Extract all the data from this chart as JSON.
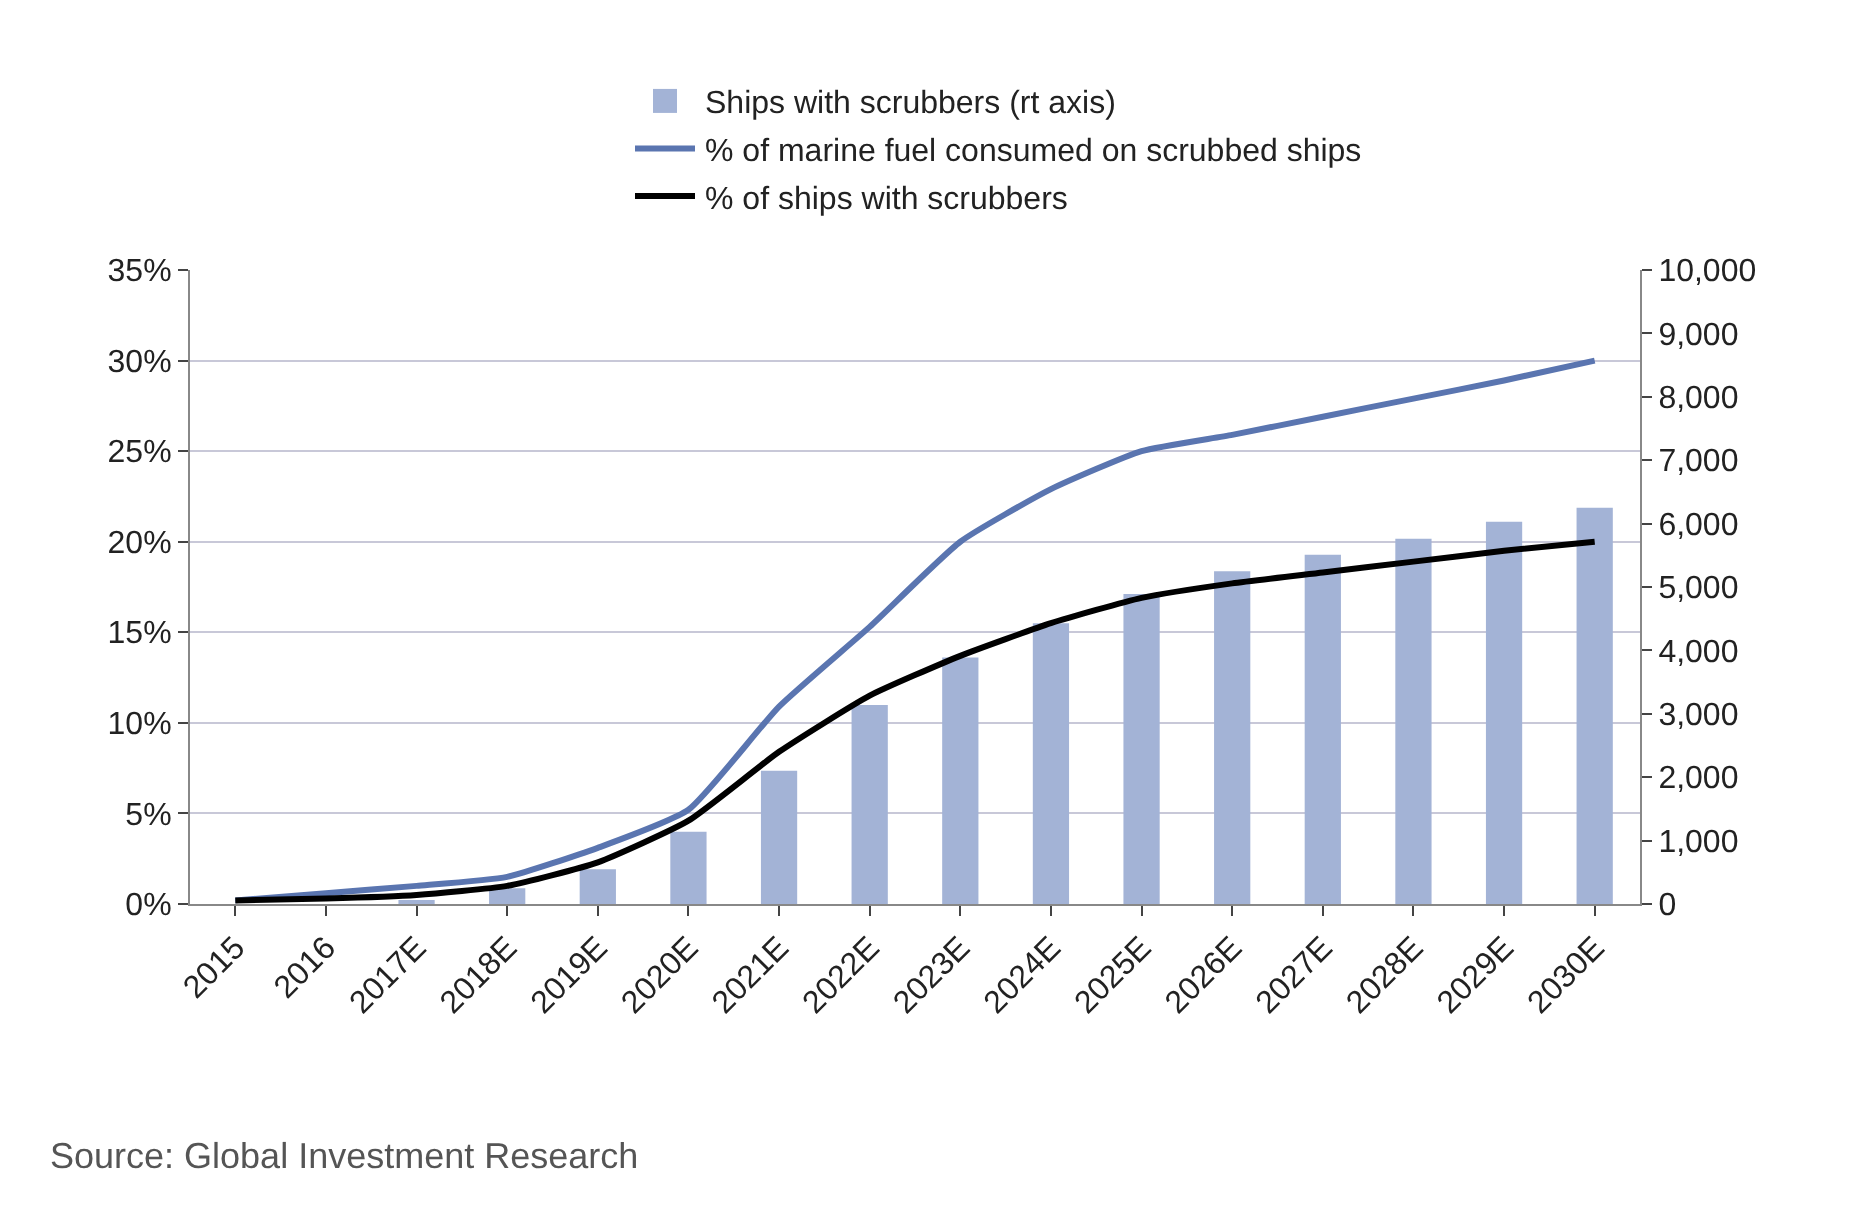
{
  "chart_data": {
    "type": "line",
    "categories": [
      "2015",
      "2016",
      "2017E",
      "2018E",
      "2019E",
      "2020E",
      "2021E",
      "2022E",
      "2023E",
      "2024E",
      "2025E",
      "2026E",
      "2027E",
      "2028E",
      "2029E",
      "2030E"
    ],
    "series": [
      {
        "name": "Ships with scrubbers (rt axis)",
        "type": "bar",
        "axis": "y2",
        "color": "#a3b3d6",
        "values": [
          0,
          0,
          50,
          250,
          550,
          1140,
          2100,
          3140,
          3890,
          4430,
          4890,
          5250,
          5510,
          5760,
          6030,
          6250
        ]
      },
      {
        "name": "% of marine fuel consumed on scrubbed ships",
        "color": "#5a75b0",
        "values": [
          0.2,
          0.6,
          1.0,
          1.5,
          3.1,
          5.2,
          10.9,
          15.3,
          20.0,
          22.9,
          25.0,
          25.9,
          26.9,
          27.9,
          28.9,
          30.0
        ]
      },
      {
        "name": "% of ships with scrubbers",
        "color": "#000000",
        "values": [
          0.2,
          0.3,
          0.5,
          1.0,
          2.3,
          4.6,
          8.4,
          11.5,
          13.7,
          15.5,
          16.9,
          17.7,
          18.3,
          18.9,
          19.5,
          20.0
        ]
      }
    ],
    "ylim": [
      0,
      35
    ],
    "yticks": [
      {
        "value": 0,
        "label": "0%"
      },
      {
        "value": 5,
        "label": "5%"
      },
      {
        "value": 10,
        "label": "10%"
      },
      {
        "value": 15,
        "label": "15%"
      },
      {
        "value": 20,
        "label": "20%"
      },
      {
        "value": 25,
        "label": "25%"
      },
      {
        "value": 30,
        "label": "30%"
      },
      {
        "value": 35,
        "label": "35%"
      }
    ],
    "y2lim": [
      0,
      10000
    ],
    "y2ticks": [
      0,
      {
        "value": 1000,
        "label": "1,000"
      },
      {
        "value": 2000,
        "label": "2,000"
      },
      {
        "value": 3000,
        "label": "3,000"
      },
      {
        "value": 4000,
        "label": "4,000"
      },
      {
        "value": 5000,
        "label": "5,000"
      },
      {
        "value": 6000,
        "label": "6,000"
      },
      {
        "value": 7000,
        "label": "7,000"
      },
      {
        "value": 8000,
        "label": "8,000"
      },
      {
        "value": 9000,
        "label": "9,000"
      },
      {
        "value": 10000,
        "label": "10,000"
      }
    ],
    "grid": "y",
    "legend": "top",
    "marker": "none",
    "line_style": "solid",
    "annotations": [
      "Source: Global Investment Research"
    ]
  }
}
